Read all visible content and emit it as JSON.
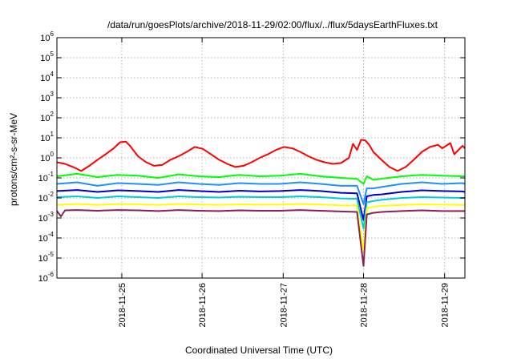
{
  "chart_data": {
    "type": "line",
    "title": "/data/run/goesPlots/archive/2018-11-29/02:00/flux/../flux/5daysEarthFluxes.txt",
    "xlabel": "Coordinated Universal Time (UTC)",
    "ylabel": "protons/cm²-s-sr-MeV",
    "yscale": "log",
    "ylim": [
      1e-06,
      1000000.0
    ],
    "xlim": [
      0,
      5.03
    ],
    "grid": true,
    "legend": "none",
    "x_ticks": [
      {
        "x": 0.8,
        "label": "2018-11-25"
      },
      {
        "x": 1.79,
        "label": "2018-11-26"
      },
      {
        "x": 2.79,
        "label": "2018-11-27"
      },
      {
        "x": 3.78,
        "label": "2018-11-28"
      },
      {
        "x": 4.78,
        "label": "2018-11-29"
      }
    ],
    "y_ticks": [
      {
        "value": 1e-06,
        "base": "10",
        "exp": "-6"
      },
      {
        "value": 1e-05,
        "base": "10",
        "exp": "-5"
      },
      {
        "value": 0.0001,
        "base": "10",
        "exp": "-4"
      },
      {
        "value": 0.001,
        "base": "10",
        "exp": "-3"
      },
      {
        "value": 0.01,
        "base": "10",
        "exp": "-2"
      },
      {
        "value": 0.1,
        "base": "10",
        "exp": "-1"
      },
      {
        "value": 1.0,
        "base": "10",
        "exp": "0"
      },
      {
        "value": 10.0,
        "base": "10",
        "exp": "1"
      },
      {
        "value": 100.0,
        "base": "10",
        "exp": "2"
      },
      {
        "value": 1000.0,
        "base": "10",
        "exp": "3"
      },
      {
        "value": 10000.0,
        "base": "10",
        "exp": "4"
      },
      {
        "value": 100000.0,
        "base": "10",
        "exp": "5"
      },
      {
        "value": 1000000.0,
        "base": "10",
        "exp": "6"
      }
    ],
    "series": [
      {
        "color": "#ff0000",
        "x": [
          0.0,
          0.1,
          0.2,
          0.3,
          0.4,
          0.5,
          0.6,
          0.7,
          0.78,
          0.85,
          0.9,
          1.0,
          1.1,
          1.2,
          1.3,
          1.4,
          1.5,
          1.6,
          1.7,
          1.8,
          1.9,
          2.0,
          2.1,
          2.2,
          2.3,
          2.4,
          2.5,
          2.6,
          2.7,
          2.8,
          2.9,
          3.0,
          3.1,
          3.2,
          3.3,
          3.4,
          3.5,
          3.6,
          3.65,
          3.7,
          3.75,
          3.8,
          3.85,
          3.9,
          4.0,
          4.1,
          4.2,
          4.3,
          4.4,
          4.5,
          4.6,
          4.7,
          4.75,
          4.8,
          4.85,
          4.9,
          5.0,
          5.03
        ],
        "values": [
          0.6,
          0.5,
          0.35,
          0.22,
          0.4,
          0.8,
          1.5,
          3.0,
          6.0,
          6.5,
          4.0,
          1.2,
          0.6,
          0.4,
          0.45,
          0.8,
          1.2,
          2.0,
          3.5,
          2.8,
          1.5,
          0.8,
          0.5,
          0.35,
          0.4,
          0.6,
          1.0,
          1.5,
          2.5,
          3.5,
          3.0,
          2.0,
          1.2,
          0.8,
          0.6,
          0.5,
          0.55,
          1.0,
          5.0,
          2.5,
          8.0,
          7.5,
          4.5,
          2.0,
          0.8,
          0.35,
          0.22,
          0.35,
          0.8,
          2.0,
          3.5,
          4.5,
          3.0,
          4.0,
          5.5,
          1.5,
          4.0,
          3.0
        ]
      },
      {
        "color": "#00ff00",
        "x": [
          0.0,
          0.25,
          0.5,
          0.75,
          1.0,
          1.25,
          1.5,
          1.75,
          2.0,
          2.25,
          2.5,
          2.75,
          3.0,
          3.25,
          3.5,
          3.7,
          3.78,
          3.82,
          3.9,
          4.0,
          4.25,
          4.5,
          4.75,
          5.0,
          5.03
        ],
        "values": [
          0.12,
          0.16,
          0.11,
          0.14,
          0.13,
          0.1,
          0.15,
          0.12,
          0.11,
          0.14,
          0.12,
          0.13,
          0.16,
          0.12,
          0.1,
          0.09,
          0.05,
          0.12,
          0.08,
          0.09,
          0.12,
          0.14,
          0.13,
          0.12,
          0.12
        ]
      },
      {
        "color": "#1e90ff",
        "x": [
          0.0,
          0.25,
          0.5,
          0.75,
          1.0,
          1.25,
          1.5,
          1.75,
          2.0,
          2.25,
          2.5,
          2.75,
          3.0,
          3.25,
          3.5,
          3.7,
          3.78,
          3.82,
          3.9,
          4.0,
          4.25,
          4.5,
          4.75,
          5.0,
          5.03
        ],
        "values": [
          0.05,
          0.06,
          0.04,
          0.055,
          0.05,
          0.045,
          0.06,
          0.05,
          0.045,
          0.055,
          0.05,
          0.05,
          0.06,
          0.05,
          0.04,
          0.04,
          0.005,
          0.03,
          0.03,
          0.035,
          0.05,
          0.06,
          0.05,
          0.055,
          0.05
        ]
      },
      {
        "color": "#0000cd",
        "x": [
          0.0,
          0.25,
          0.5,
          0.75,
          1.0,
          1.25,
          1.5,
          1.75,
          2.0,
          2.25,
          2.5,
          2.75,
          3.0,
          3.25,
          3.5,
          3.7,
          3.78,
          3.82,
          3.9,
          4.0,
          4.25,
          4.5,
          4.75,
          5.0,
          5.03
        ],
        "values": [
          0.022,
          0.025,
          0.02,
          0.024,
          0.022,
          0.02,
          0.025,
          0.022,
          0.02,
          0.023,
          0.021,
          0.022,
          0.025,
          0.022,
          0.018,
          0.017,
          0.0008,
          0.012,
          0.014,
          0.015,
          0.02,
          0.024,
          0.022,
          0.021,
          0.02
        ]
      },
      {
        "color": "#00ced1",
        "x": [
          0.0,
          0.25,
          0.5,
          0.75,
          1.0,
          1.25,
          1.5,
          1.75,
          2.0,
          2.25,
          2.5,
          2.75,
          3.0,
          3.25,
          3.5,
          3.7,
          3.78,
          3.82,
          3.9,
          4.0,
          4.25,
          4.5,
          4.75,
          5.0,
          5.03
        ],
        "values": [
          0.011,
          0.012,
          0.01,
          0.012,
          0.011,
          0.01,
          0.012,
          0.011,
          0.0105,
          0.0115,
          0.011,
          0.011,
          0.012,
          0.011,
          0.0095,
          0.009,
          0.0003,
          0.006,
          0.007,
          0.008,
          0.01,
          0.011,
          0.0105,
          0.01,
          0.01
        ]
      },
      {
        "color": "#ffff00",
        "x": [
          0.0,
          0.25,
          0.5,
          0.75,
          1.0,
          1.25,
          1.5,
          1.75,
          2.0,
          2.25,
          2.5,
          2.75,
          3.0,
          3.25,
          3.5,
          3.7,
          3.78,
          3.82,
          3.9,
          4.0,
          4.25,
          4.5,
          4.75,
          5.0,
          5.03
        ],
        "values": [
          0.0045,
          0.005,
          0.0045,
          0.005,
          0.0048,
          0.0045,
          0.005,
          0.0047,
          0.0045,
          0.0048,
          0.0046,
          0.0047,
          0.005,
          0.0047,
          0.0043,
          0.0042,
          2e-05,
          0.003,
          0.0036,
          0.004,
          0.0045,
          0.0048,
          0.0046,
          0.0045,
          0.0045
        ]
      },
      {
        "color": "#8b2252",
        "x": [
          0.0,
          0.05,
          0.1,
          0.25,
          0.5,
          0.75,
          1.0,
          1.25,
          1.5,
          1.75,
          2.0,
          2.25,
          2.5,
          2.75,
          3.0,
          3.25,
          3.5,
          3.7,
          3.78,
          3.82,
          3.9,
          4.0,
          4.25,
          4.5,
          4.75,
          5.0,
          5.03
        ],
        "values": [
          0.0022,
          0.0012,
          0.0024,
          0.0025,
          0.0023,
          0.0025,
          0.0024,
          0.0022,
          0.0025,
          0.0023,
          0.0022,
          0.0024,
          0.0023,
          0.0023,
          0.0025,
          0.0023,
          0.0021,
          0.002,
          4e-06,
          0.0015,
          0.0018,
          0.002,
          0.0022,
          0.0024,
          0.0022,
          0.0022,
          0.0022
        ]
      }
    ]
  }
}
